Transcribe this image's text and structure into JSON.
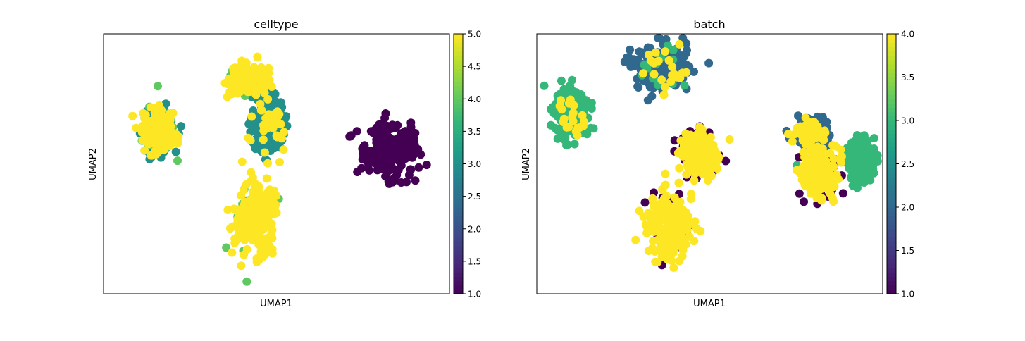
{
  "chart_data": [
    {
      "type": "scatter",
      "title": "celltype",
      "xlabel": "UMAP1",
      "ylabel": "UMAP2",
      "x_ticks": "none",
      "y_ticks": "none",
      "grid": false,
      "colormap": "viridis",
      "colorbar": {
        "min": 1.0,
        "max": 5.0,
        "ticks": [
          "1.0",
          "1.5",
          "2.0",
          "2.5",
          "3.0",
          "3.5",
          "4.0",
          "4.5",
          "5.0"
        ]
      },
      "clusters": [
        {
          "label": "left",
          "center": [
            2.1,
            6.9
          ],
          "spread": [
            0.55,
            0.9
          ],
          "value_mix": [
            [
              3,
              0.35
            ],
            [
              4,
              0.2
            ],
            [
              5,
              0.45
            ]
          ]
        },
        {
          "label": "top-middle",
          "center": [
            5.4,
            9.1
          ],
          "spread": [
            0.6,
            0.55
          ],
          "value_mix": [
            [
              4,
              0.25
            ],
            [
              5,
              0.75
            ]
          ]
        },
        {
          "label": "middle-band",
          "center": [
            6.2,
            7.2
          ],
          "spread": [
            0.55,
            1.0
          ],
          "value_mix": [
            [
              3,
              0.9
            ],
            [
              5,
              0.1
            ]
          ]
        },
        {
          "label": "bottom-middle",
          "center": [
            5.7,
            3.2
          ],
          "spread": [
            0.7,
            1.3
          ],
          "value_mix": [
            [
              4,
              0.15
            ],
            [
              5,
              0.85
            ]
          ]
        },
        {
          "label": "right",
          "center": [
            10.8,
            6.0
          ],
          "spread": [
            0.9,
            1.0
          ],
          "value_mix": [
            [
              1,
              1.0
            ]
          ]
        }
      ]
    },
    {
      "type": "scatter",
      "title": "batch",
      "xlabel": "UMAP1",
      "ylabel": "UMAP2",
      "x_ticks": "none",
      "y_ticks": "none",
      "grid": false,
      "colormap": "viridis",
      "colorbar": {
        "min": 1.0,
        "max": 4.0,
        "ticks": [
          "1.0",
          "1.5",
          "2.0",
          "2.5",
          "3.0",
          "3.5",
          "4.0"
        ]
      },
      "clusters": [
        {
          "label": "left",
          "center": [
            1.3,
            7.7
          ],
          "spread": [
            0.55,
            0.95
          ],
          "value_mix": [
            [
              3,
              0.92
            ],
            [
              4,
              0.08
            ]
          ]
        },
        {
          "label": "top-middle",
          "center": [
            4.7,
            9.6
          ],
          "spread": [
            0.9,
            0.85
          ],
          "value_mix": [
            [
              2,
              0.88
            ],
            [
              4,
              0.08
            ],
            [
              3,
              0.04
            ]
          ]
        },
        {
          "label": "middle",
          "center": [
            6.1,
            5.9
          ],
          "spread": [
            0.55,
            0.9
          ],
          "value_mix": [
            [
              4,
              0.7
            ],
            [
              1,
              0.3
            ]
          ]
        },
        {
          "label": "bottom-middle",
          "center": [
            5.0,
            2.9
          ],
          "spread": [
            0.75,
            1.2
          ],
          "value_mix": [
            [
              4,
              0.85
            ],
            [
              1,
              0.15
            ]
          ]
        },
        {
          "label": "right-top",
          "center": [
            10.3,
            6.8
          ],
          "spread": [
            0.55,
            0.45
          ],
          "value_mix": [
            [
              2,
              0.85
            ],
            [
              4,
              0.15
            ]
          ]
        },
        {
          "label": "right-middle",
          "center": [
            10.6,
            5.1
          ],
          "spread": [
            0.6,
            0.85
          ],
          "value_mix": [
            [
              4,
              0.7
            ],
            [
              1,
              0.25
            ],
            [
              3,
              0.05
            ]
          ]
        },
        {
          "label": "right-far",
          "center": [
            12.2,
            5.6
          ],
          "spread": [
            0.45,
            0.75
          ],
          "value_mix": [
            [
              3,
              1.0
            ]
          ]
        }
      ]
    }
  ]
}
